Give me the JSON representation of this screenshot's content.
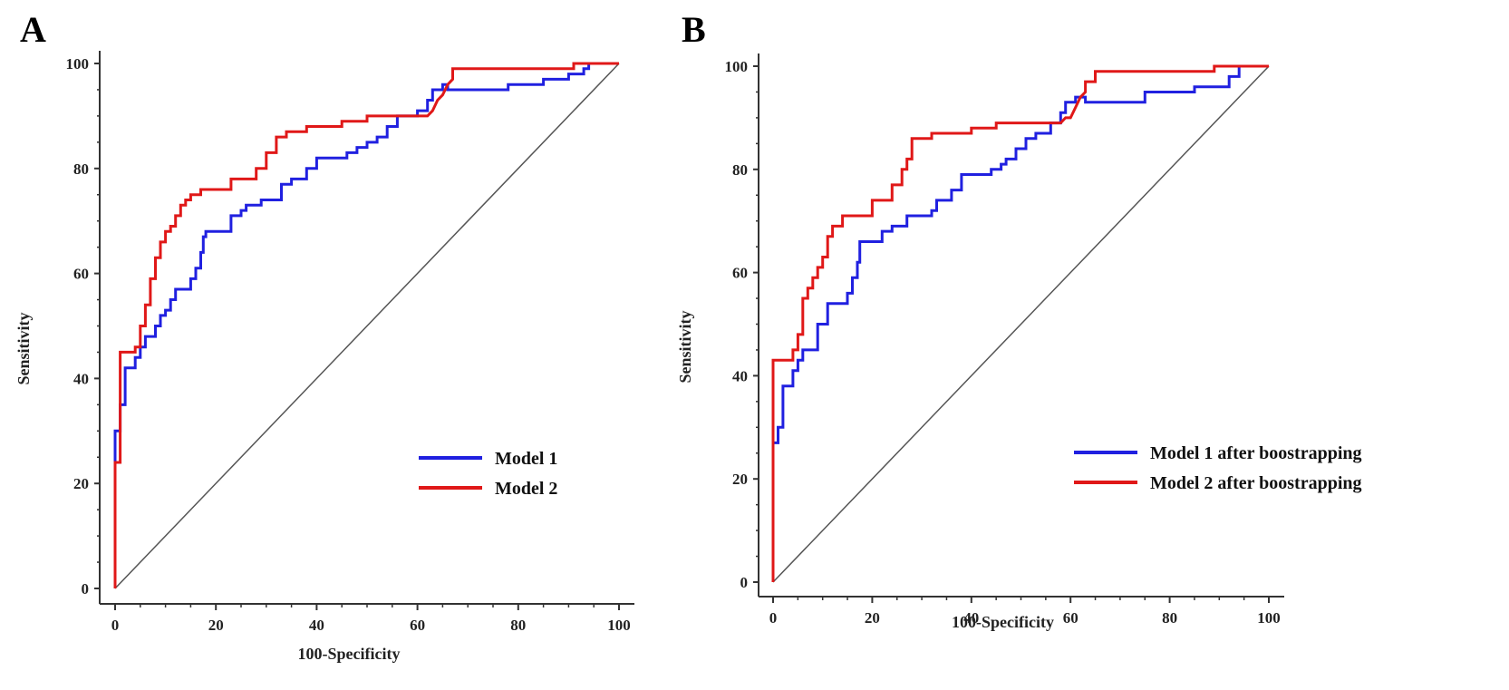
{
  "chart_data": [
    {
      "type": "line",
      "panel_label": "A",
      "title": "",
      "xlabel": "100-Specificity",
      "ylabel": "Sensitivity",
      "xlim": [
        0,
        100
      ],
      "ylim": [
        0,
        100
      ],
      "xticks": [
        0,
        20,
        40,
        60,
        80,
        100
      ],
      "yticks": [
        0,
        20,
        40,
        60,
        80,
        100
      ],
      "grid": false,
      "legend_position": "bottom-right",
      "reference_line": {
        "x": [
          0,
          100
        ],
        "y": [
          0,
          100
        ],
        "color": "#555555"
      },
      "series": [
        {
          "name": "Model 1",
          "color": "#2020e0",
          "points": [
            [
              0,
              0
            ],
            [
              0,
              25
            ],
            [
              0,
              30
            ],
            [
              1,
              30
            ],
            [
              1,
              35
            ],
            [
              2,
              35
            ],
            [
              2,
              42
            ],
            [
              4,
              42
            ],
            [
              4,
              44
            ],
            [
              5,
              44
            ],
            [
              5,
              46
            ],
            [
              6,
              46
            ],
            [
              6,
              48
            ],
            [
              8,
              48
            ],
            [
              8,
              50
            ],
            [
              9,
              50
            ],
            [
              9,
              52
            ],
            [
              10,
              52
            ],
            [
              10,
              53
            ],
            [
              11,
              53
            ],
            [
              11,
              55
            ],
            [
              12,
              55
            ],
            [
              12,
              57
            ],
            [
              15,
              57
            ],
            [
              15,
              59
            ],
            [
              16,
              59
            ],
            [
              16,
              61
            ],
            [
              17,
              61
            ],
            [
              17,
              64
            ],
            [
              17.5,
              64
            ],
            [
              17.5,
              67
            ],
            [
              18,
              67
            ],
            [
              18,
              68
            ],
            [
              23,
              68
            ],
            [
              23,
              71
            ],
            [
              25,
              71
            ],
            [
              25,
              72
            ],
            [
              26,
              72
            ],
            [
              26,
              73
            ],
            [
              29,
              73
            ],
            [
              29,
              74
            ],
            [
              33,
              74
            ],
            [
              33,
              77
            ],
            [
              35,
              77
            ],
            [
              35,
              78
            ],
            [
              38,
              78
            ],
            [
              38,
              80
            ],
            [
              40,
              80
            ],
            [
              40,
              82
            ],
            [
              46,
              82
            ],
            [
              46,
              83
            ],
            [
              48,
              83
            ],
            [
              48,
              84
            ],
            [
              50,
              84
            ],
            [
              50,
              85
            ],
            [
              52,
              85
            ],
            [
              52,
              86
            ],
            [
              54,
              86
            ],
            [
              54,
              88
            ],
            [
              56,
              88
            ],
            [
              56,
              90
            ],
            [
              60,
              90
            ],
            [
              60,
              91
            ],
            [
              62,
              91
            ],
            [
              62,
              93
            ],
            [
              63,
              93
            ],
            [
              63,
              95
            ],
            [
              65,
              95
            ],
            [
              65,
              96
            ],
            [
              66,
              96
            ],
            [
              66,
              95
            ],
            [
              71,
              95
            ],
            [
              75,
              95
            ],
            [
              78,
              95
            ],
            [
              78,
              96
            ],
            [
              85,
              96
            ],
            [
              85,
              97
            ],
            [
              90,
              97
            ],
            [
              90,
              98
            ],
            [
              93,
              98
            ],
            [
              93,
              99
            ],
            [
              94,
              99
            ],
            [
              94,
              100
            ],
            [
              100,
              100
            ]
          ]
        },
        {
          "name": "Model 2",
          "color": "#e01818",
          "points": [
            [
              0,
              0
            ],
            [
              0,
              24
            ],
            [
              1,
              24
            ],
            [
              1,
              45
            ],
            [
              4,
              45
            ],
            [
              4,
              46
            ],
            [
              5,
              46
            ],
            [
              5,
              50
            ],
            [
              6,
              50
            ],
            [
              6,
              54
            ],
            [
              7,
              54
            ],
            [
              7,
              59
            ],
            [
              8,
              59
            ],
            [
              8,
              63
            ],
            [
              9,
              63
            ],
            [
              9,
              66
            ],
            [
              10,
              66
            ],
            [
              10,
              68
            ],
            [
              11,
              68
            ],
            [
              11,
              69
            ],
            [
              12,
              69
            ],
            [
              12,
              71
            ],
            [
              13,
              71
            ],
            [
              13,
              73
            ],
            [
              14,
              73
            ],
            [
              14,
              74
            ],
            [
              15,
              74
            ],
            [
              15,
              75
            ],
            [
              17,
              75
            ],
            [
              17,
              76
            ],
            [
              23,
              76
            ],
            [
              23,
              78
            ],
            [
              28,
              78
            ],
            [
              28,
              80
            ],
            [
              30,
              80
            ],
            [
              30,
              83
            ],
            [
              32,
              83
            ],
            [
              32,
              86
            ],
            [
              34,
              86
            ],
            [
              34,
              87
            ],
            [
              38,
              87
            ],
            [
              38,
              88
            ],
            [
              45,
              88
            ],
            [
              45,
              89
            ],
            [
              50,
              89
            ],
            [
              50,
              90
            ],
            [
              60,
              90
            ],
            [
              62,
              90
            ],
            [
              63,
              91
            ],
            [
              64,
              93
            ],
            [
              65,
              94
            ],
            [
              66,
              96
            ],
            [
              67,
              97
            ],
            [
              67,
              99
            ],
            [
              80,
              99
            ],
            [
              91,
              99
            ],
            [
              91,
              100
            ],
            [
              100,
              100
            ]
          ]
        }
      ]
    },
    {
      "type": "line",
      "panel_label": "B",
      "title": "",
      "xlabel": "100-Specificity",
      "ylabel": "Sensitivity",
      "xlim": [
        0,
        100
      ],
      "ylim": [
        0,
        100
      ],
      "xticks": [
        0,
        20,
        40,
        60,
        80,
        100
      ],
      "yticks": [
        0,
        20,
        40,
        60,
        80,
        100
      ],
      "grid": false,
      "legend_position": "bottom-right",
      "reference_line": {
        "x": [
          0,
          100
        ],
        "y": [
          0,
          100
        ],
        "color": "#555555"
      },
      "series": [
        {
          "name": "Model 1 after boostrapping",
          "color": "#2020e0",
          "points": [
            [
              0,
              0
            ],
            [
              0,
              27
            ],
            [
              1,
              27
            ],
            [
              1,
              30
            ],
            [
              2,
              30
            ],
            [
              2,
              38
            ],
            [
              4,
              38
            ],
            [
              4,
              41
            ],
            [
              5,
              41
            ],
            [
              5,
              43
            ],
            [
              6,
              43
            ],
            [
              6,
              45
            ],
            [
              9,
              45
            ],
            [
              9,
              50
            ],
            [
              11,
              50
            ],
            [
              11,
              54
            ],
            [
              15,
              54
            ],
            [
              15,
              56
            ],
            [
              16,
              56
            ],
            [
              16,
              59
            ],
            [
              17,
              59
            ],
            [
              17,
              62
            ],
            [
              17.5,
              62
            ],
            [
              17.5,
              66
            ],
            [
              22,
              66
            ],
            [
              22,
              68
            ],
            [
              24,
              68
            ],
            [
              24,
              69
            ],
            [
              27,
              69
            ],
            [
              27,
              71
            ],
            [
              32,
              71
            ],
            [
              32,
              72
            ],
            [
              33,
              72
            ],
            [
              33,
              74
            ],
            [
              36,
              74
            ],
            [
              36,
              76
            ],
            [
              38,
              76
            ],
            [
              38,
              79
            ],
            [
              44,
              79
            ],
            [
              44,
              80
            ],
            [
              46,
              80
            ],
            [
              46,
              81
            ],
            [
              47,
              81
            ],
            [
              47,
              82
            ],
            [
              49,
              82
            ],
            [
              49,
              84
            ],
            [
              51,
              84
            ],
            [
              51,
              86
            ],
            [
              53,
              86
            ],
            [
              53,
              87
            ],
            [
              56,
              87
            ],
            [
              56,
              89
            ],
            [
              58,
              89
            ],
            [
              58,
              91
            ],
            [
              59,
              91
            ],
            [
              59,
              93
            ],
            [
              61,
              93
            ],
            [
              61,
              94
            ],
            [
              63,
              94
            ],
            [
              63,
              93
            ],
            [
              75,
              93
            ],
            [
              75,
              95
            ],
            [
              85,
              95
            ],
            [
              85,
              96
            ],
            [
              92,
              96
            ],
            [
              92,
              98
            ],
            [
              94,
              98
            ],
            [
              94,
              100
            ],
            [
              100,
              100
            ]
          ]
        },
        {
          "name": "Model 2 after boostrapping",
          "color": "#e01818",
          "points": [
            [
              0,
              0
            ],
            [
              0,
              43
            ],
            [
              4,
              43
            ],
            [
              4,
              45
            ],
            [
              5,
              45
            ],
            [
              5,
              48
            ],
            [
              6,
              48
            ],
            [
              6,
              55
            ],
            [
              7,
              55
            ],
            [
              7,
              57
            ],
            [
              8,
              57
            ],
            [
              8,
              59
            ],
            [
              9,
              59
            ],
            [
              9,
              61
            ],
            [
              10,
              61
            ],
            [
              10,
              63
            ],
            [
              11,
              63
            ],
            [
              11,
              67
            ],
            [
              12,
              67
            ],
            [
              12,
              69
            ],
            [
              14,
              69
            ],
            [
              14,
              71
            ],
            [
              20,
              71
            ],
            [
              20,
              74
            ],
            [
              24,
              74
            ],
            [
              24,
              77
            ],
            [
              26,
              77
            ],
            [
              26,
              80
            ],
            [
              27,
              80
            ],
            [
              27,
              82
            ],
            [
              28,
              82
            ],
            [
              28,
              86
            ],
            [
              32,
              86
            ],
            [
              32,
              87
            ],
            [
              40,
              87
            ],
            [
              40,
              88
            ],
            [
              45,
              88
            ],
            [
              45,
              89
            ],
            [
              56,
              89
            ],
            [
              58,
              89
            ],
            [
              59,
              90
            ],
            [
              60,
              90
            ],
            [
              61,
              92
            ],
            [
              62,
              94
            ],
            [
              63,
              95
            ],
            [
              63,
              97
            ],
            [
              65,
              97
            ],
            [
              65,
              99
            ],
            [
              89,
              99
            ],
            [
              89,
              100
            ],
            [
              100,
              100
            ]
          ]
        }
      ]
    }
  ]
}
